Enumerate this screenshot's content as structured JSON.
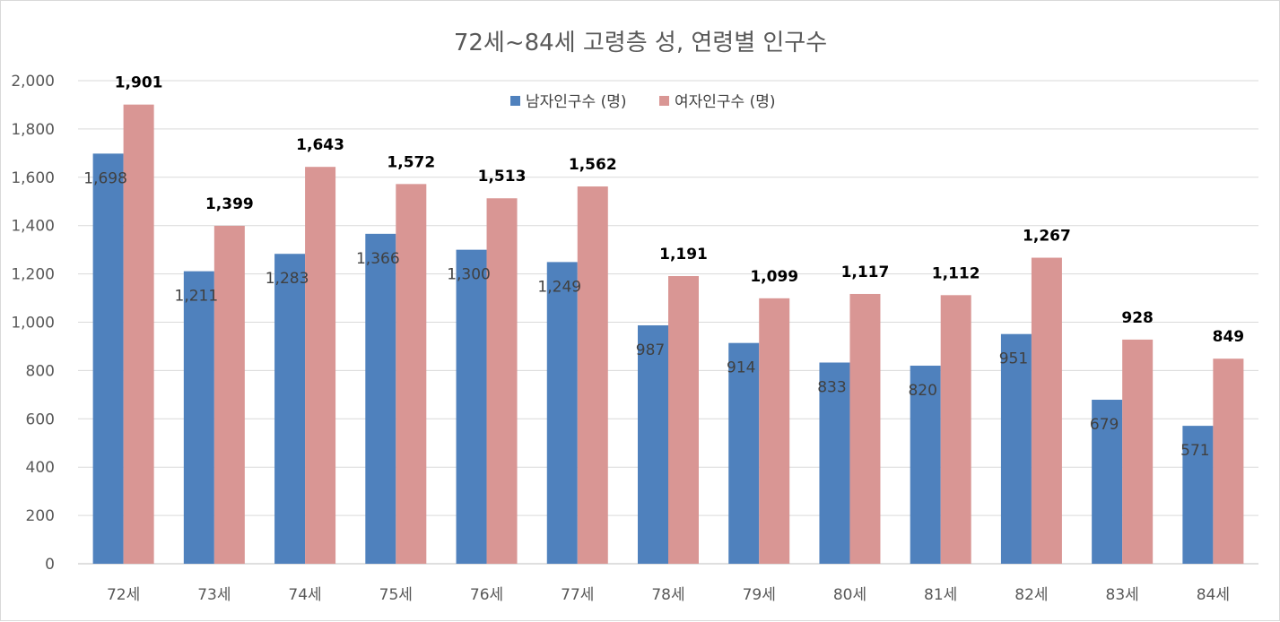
{
  "chart_data": {
    "type": "bar",
    "title": "72세~84세 고령층 성, 연령별 인구수",
    "categories": [
      "72세",
      "73세",
      "74세",
      "75세",
      "76세",
      "77세",
      "78세",
      "79세",
      "80세",
      "81세",
      "82세",
      "83세",
      "84세"
    ],
    "series": [
      {
        "name": "남자인구수 (명)",
        "color": "#4f81bd",
        "values": [
          1698,
          1211,
          1283,
          1366,
          1300,
          1249,
          987,
          914,
          833,
          820,
          951,
          679,
          571
        ],
        "value_labels": [
          "1,698",
          "1,211",
          "1,283",
          "1,366",
          "1,300",
          "1,249",
          "987",
          "914",
          "833",
          "820",
          "951",
          "679",
          "571"
        ]
      },
      {
        "name": "여자인구수 (명)",
        "color": "#d99694",
        "values": [
          1901,
          1399,
          1643,
          1572,
          1513,
          1562,
          1191,
          1099,
          1117,
          1112,
          1267,
          928,
          849
        ],
        "value_labels": [
          "1,901",
          "1,399",
          "1,643",
          "1,572",
          "1,513",
          "1,562",
          "1,191",
          "1,099",
          "1,117",
          "1,112",
          "1,267",
          "928",
          "849"
        ]
      }
    ],
    "ylim": [
      0,
      2000
    ],
    "yticks": [
      0,
      200,
      400,
      600,
      800,
      1000,
      1200,
      1400,
      1600,
      1800,
      2000
    ],
    "ytick_labels": [
      "0",
      "200",
      "400",
      "600",
      "800",
      "1,000",
      "1,200",
      "1,400",
      "1,600",
      "1,800",
      "2,000"
    ],
    "grid": true,
    "legend_position": "top-center"
  }
}
